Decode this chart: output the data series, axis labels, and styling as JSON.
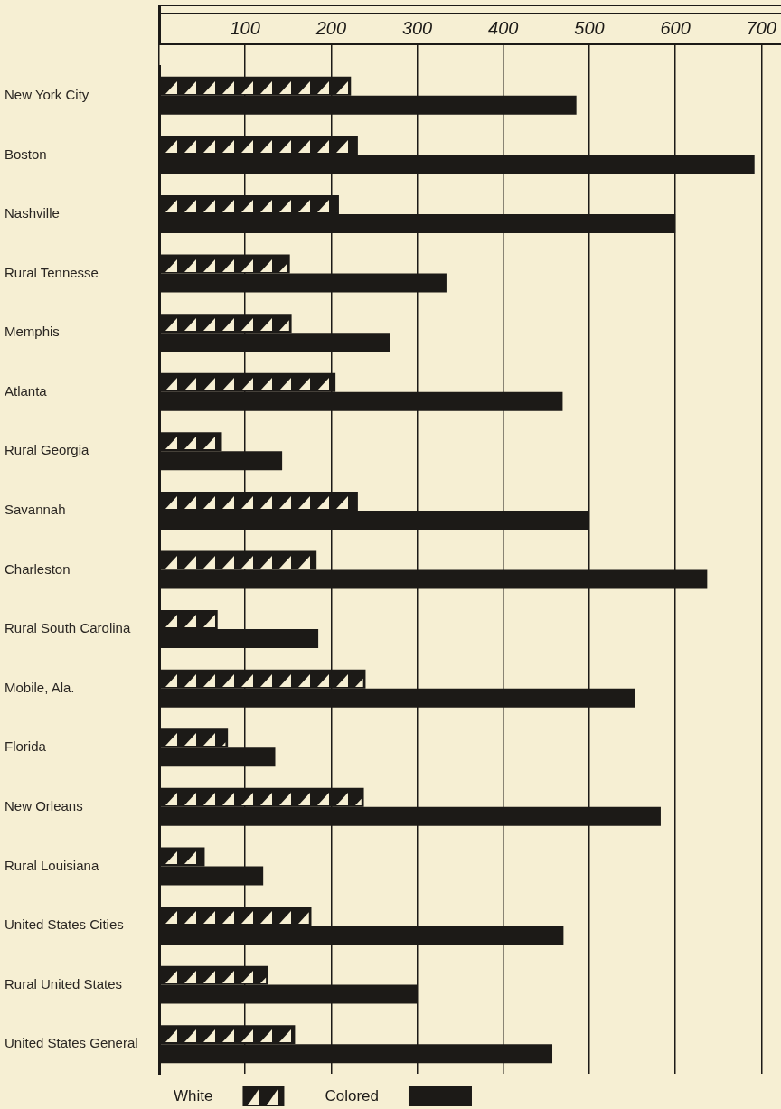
{
  "chart_data": {
    "type": "bar",
    "orientation": "horizontal",
    "categories": [
      "New York City",
      "Boston",
      "Nashville",
      "Rural Tennesse",
      "Memphis",
      "Atlanta",
      "Rural Georgia",
      "Savannah",
      "Charleston",
      "Rural South Carolina",
      "Mobile, Ala.",
      "Florida",
      "New Orleans",
      "Rural Louisiana",
      "United States Cities",
      "Rural United States",
      "United States General"
    ],
    "series": [
      {
        "name": "White",
        "color": "#1c1a17",
        "values": [
          223,
          231,
          209,
          152,
          154,
          205,
          73,
          231,
          183,
          68,
          240,
          80,
          238,
          53,
          177,
          127,
          158
        ]
      },
      {
        "name": "Colored",
        "color": "#1c1a17",
        "values": [
          485,
          692,
          600,
          334,
          268,
          469,
          143,
          500,
          637,
          185,
          553,
          135,
          583,
          121,
          470,
          300,
          457
        ]
      }
    ],
    "xlim": [
      0,
      720
    ],
    "xticks": [
      {
        "value": 0,
        "label": null
      },
      100,
      200,
      300,
      400,
      500,
      600,
      700
    ],
    "grid": "x",
    "legend": "bottom"
  }
}
